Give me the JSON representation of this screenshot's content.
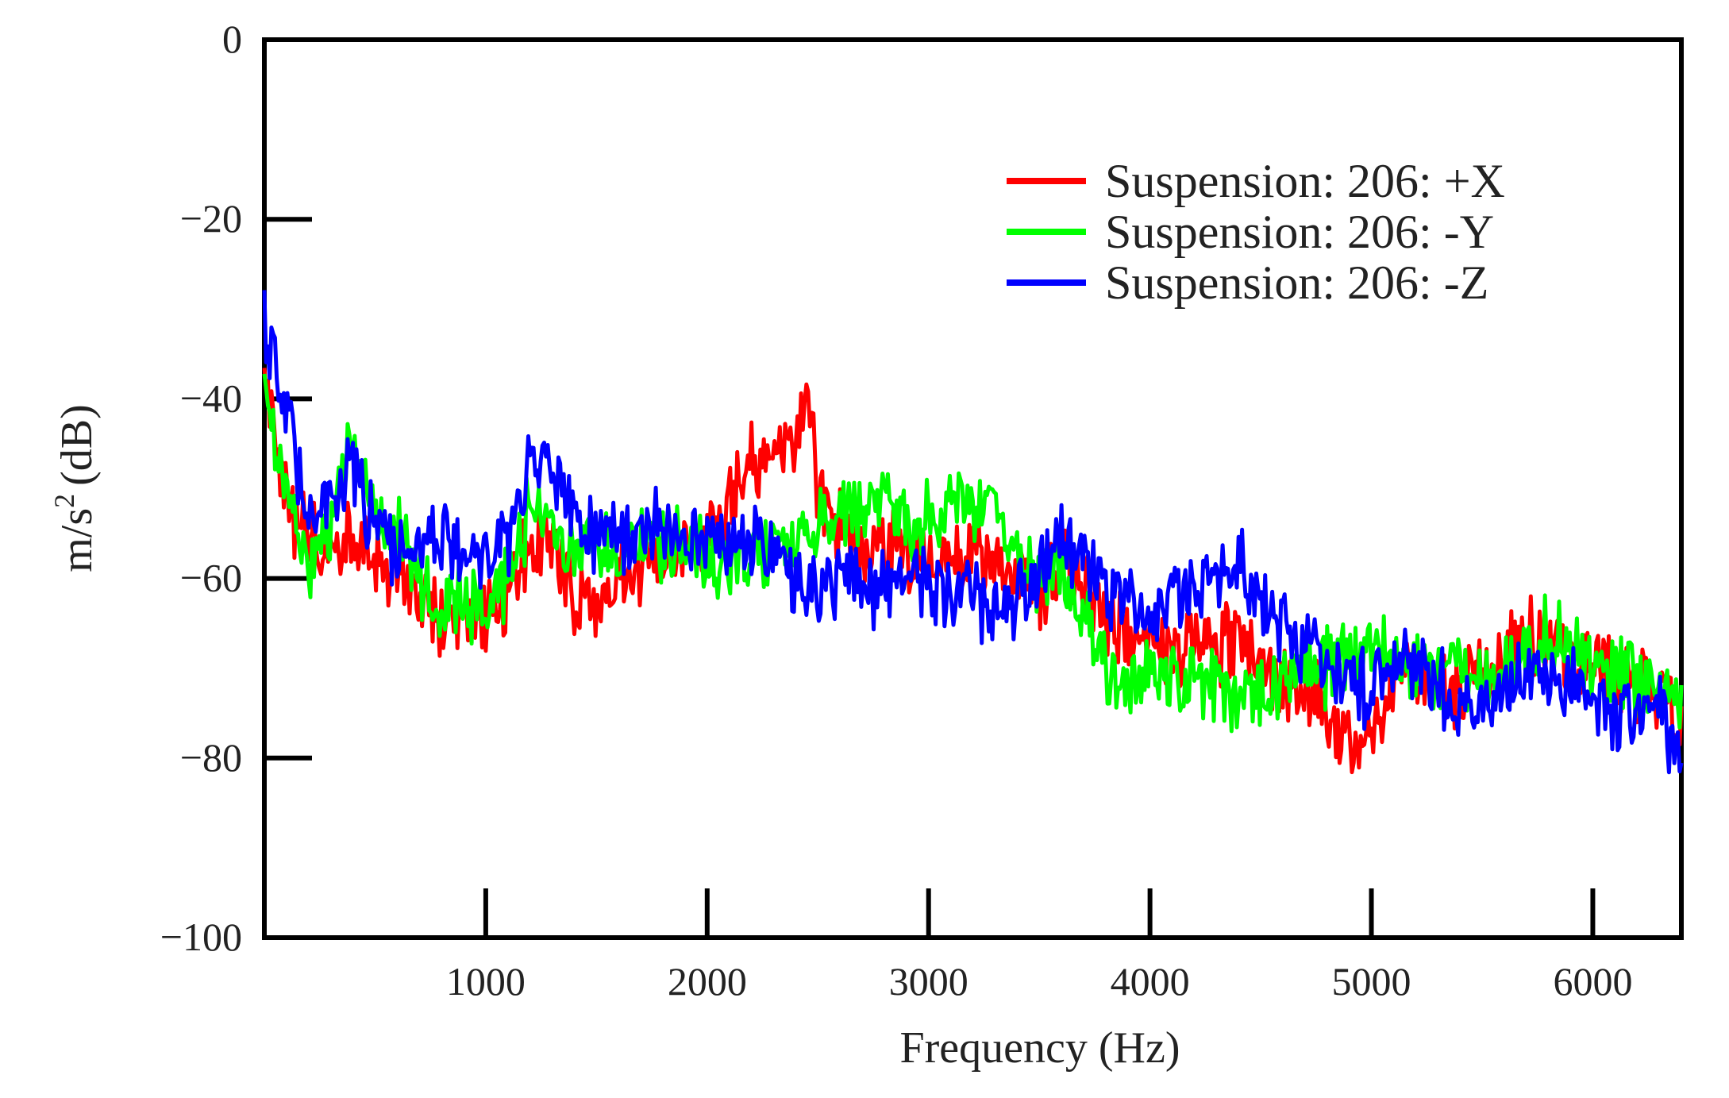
{
  "chart_data": {
    "type": "line",
    "title": "",
    "xlabel": "Frequency (Hz)",
    "ylabel_base": "m/s",
    "ylabel_exp": "2",
    "ylabel_unit": "(dB)",
    "xlim": [
      0,
      6400
    ],
    "ylim": [
      -100,
      0
    ],
    "xticks": [
      1000,
      2000,
      3000,
      4000,
      5000,
      6000
    ],
    "xtick_labels": [
      "1000",
      "2000",
      "3000",
      "4000",
      "5000",
      "6000"
    ],
    "yticks": [
      0,
      -20,
      -40,
      -60,
      -80,
      -100
    ],
    "ytick_labels": [
      "0",
      "−20",
      "−40",
      "−60",
      "−80",
      "−100"
    ],
    "grid": false,
    "legend_position": "top-right",
    "x": [
      0,
      100,
      200,
      300,
      400,
      500,
      600,
      700,
      800,
      900,
      1000,
      1100,
      1200,
      1300,
      1400,
      1500,
      1600,
      1700,
      1800,
      1900,
      2000,
      2100,
      2200,
      2300,
      2400,
      2450,
      2500,
      2600,
      2700,
      2800,
      2900,
      3000,
      3100,
      3200,
      3300,
      3400,
      3500,
      3600,
      3700,
      3800,
      3900,
      4000,
      4100,
      4200,
      4300,
      4400,
      4500,
      4600,
      4700,
      4800,
      4900,
      5000,
      5100,
      5200,
      5300,
      5400,
      5500,
      5600,
      5700,
      5800,
      5900,
      6000,
      6100,
      6200,
      6300,
      6400
    ],
    "series": [
      {
        "name": "Suspension: 206: +X",
        "color": "#ff0000",
        "values": [
          -38,
          -52,
          -56,
          -56,
          -55,
          -58,
          -60,
          -62,
          -65,
          -66,
          -64,
          -62,
          -55,
          -56,
          -62,
          -63,
          -60,
          -59,
          -57,
          -57,
          -56,
          -52,
          -47,
          -47,
          -45,
          -40,
          -50,
          -54,
          -56,
          -56,
          -57,
          -58,
          -57,
          -57,
          -58,
          -60,
          -61,
          -58,
          -61,
          -64,
          -66,
          -66,
          -69,
          -67,
          -68,
          -66,
          -70,
          -72,
          -72,
          -75,
          -78,
          -78,
          -72,
          -70,
          -71,
          -73,
          -70,
          -68,
          -66,
          -68,
          -70,
          -70,
          -70,
          -72,
          -73,
          -76
        ]
      },
      {
        "name": "Suspension: 206: -Y",
        "color": "#00ff00",
        "values": [
          -40,
          -50,
          -58,
          -55,
          -44,
          -52,
          -55,
          -60,
          -62,
          -62,
          -64,
          -60,
          -52,
          -54,
          -58,
          -56,
          -58,
          -57,
          -56,
          -57,
          -58,
          -58,
          -57,
          -57,
          -55,
          -57,
          -55,
          -53,
          -53,
          -52,
          -54,
          -53,
          -52,
          -52,
          -52,
          -58,
          -60,
          -60,
          -63,
          -70,
          -72,
          -70,
          -71,
          -71,
          -72,
          -74,
          -72,
          -71,
          -70,
          -70,
          -69,
          -69,
          -69,
          -70,
          -71,
          -70,
          -72,
          -70,
          -68,
          -66,
          -68,
          -70,
          -70,
          -72,
          -72,
          -74
        ]
      },
      {
        "name": "Suspension: 206: -Z",
        "color": "#0000ff",
        "values": [
          -32,
          -42,
          -52,
          -50,
          -48,
          -55,
          -56,
          -56,
          -55,
          -56,
          -58,
          -56,
          -45,
          -48,
          -53,
          -55,
          -56,
          -56,
          -54,
          -56,
          -55,
          -57,
          -56,
          -58,
          -60,
          -62,
          -62,
          -60,
          -60,
          -62,
          -60,
          -61,
          -62,
          -62,
          -63,
          -62,
          -60,
          -55,
          -58,
          -61,
          -62,
          -64,
          -62,
          -61,
          -60,
          -58,
          -62,
          -66,
          -68,
          -70,
          -72,
          -72,
          -70,
          -70,
          -72,
          -74,
          -74,
          -72,
          -70,
          -71,
          -71,
          -74,
          -75,
          -76,
          -75,
          -79
        ]
      }
    ]
  }
}
